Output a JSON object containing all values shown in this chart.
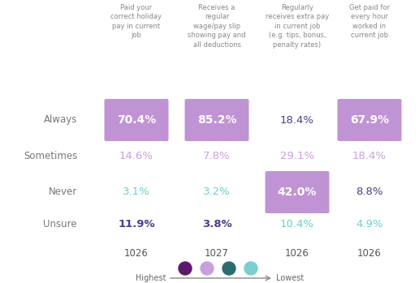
{
  "columns": [
    "Paid your\ncorrect holiday\npay in current\njob",
    "Receives a\nregular\nwage/pay slip\nshowing pay and\nall deductions",
    "Regularly\nreceives extra pay\nin current job\n(e.g. tips, bonus,\npenalty rates)",
    "Get paid for\nevery hour\nworked in\ncurrent job"
  ],
  "rows": [
    "Always",
    "Sometimes",
    "Never",
    "Unsure"
  ],
  "values": [
    [
      "70.4%",
      "85.2%",
      "18.4%",
      "67.9%"
    ],
    [
      "14.6%",
      "7.8%",
      "29.1%",
      "18.4%"
    ],
    [
      "3.1%",
      "3.2%",
      "42.0%",
      "8.8%"
    ],
    [
      "11.9%",
      "3.8%",
      "10.4%",
      "4.9%"
    ]
  ],
  "ns": [
    "1026",
    "1027",
    "1026",
    "1026"
  ],
  "highlighted": [
    [
      true,
      true,
      false,
      true
    ],
    [
      false,
      false,
      false,
      false
    ],
    [
      false,
      false,
      true,
      false
    ],
    [
      false,
      false,
      false,
      false
    ]
  ],
  "highlight_color": "#bf93d4",
  "text_colors": [
    [
      "#ffffff",
      "#ffffff",
      "#4a3f8a",
      "#ffffff"
    ],
    [
      "#c9a0dc",
      "#c9a0dc",
      "#c9a0dc",
      "#c9a0dc"
    ],
    [
      "#6ecece",
      "#6ecece",
      "#ffffff",
      "#4a3f8a"
    ],
    [
      "#4a3f8a",
      "#4a3f8a",
      "#6ecece",
      "#6ecece"
    ]
  ],
  "background_color": "#ffffff",
  "row_label_color": "#777777",
  "n_label_color": "#555555",
  "legend_colors": [
    "#5B1A6B",
    "#c9a0dc",
    "#2E6B6B",
    "#7BCFCF"
  ],
  "col_header_color": "#888888",
  "unsure_bold": [
    true,
    false,
    false,
    false
  ]
}
